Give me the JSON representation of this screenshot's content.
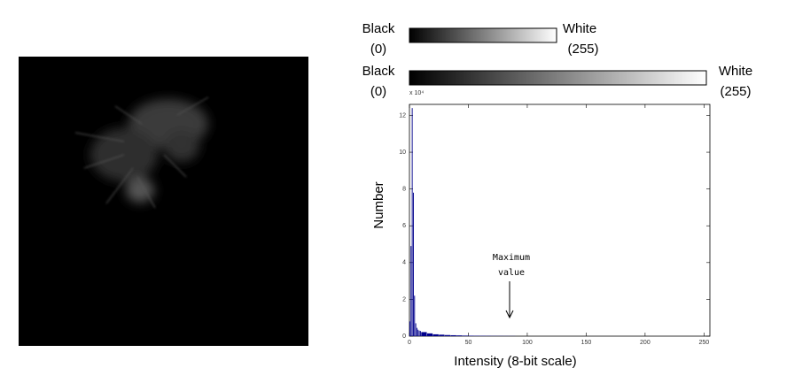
{
  "chart_data": {
    "type": "histogram",
    "xlabel": "Intensity (8-bit scale)",
    "ylabel": "Number",
    "y_multiplier": "x 10⁴",
    "bins": [
      0,
      1,
      2,
      3,
      4,
      5,
      6,
      7,
      8,
      9,
      10,
      15,
      20,
      25,
      30,
      35,
      40,
      45,
      50,
      55,
      60,
      65,
      70,
      75,
      80,
      85,
      90
    ],
    "values": [
      0.8,
      4.9,
      12.4,
      7.8,
      2.2,
      0.7,
      0.45,
      0.35,
      0.3,
      0.28,
      0.22,
      0.15,
      0.1,
      0.08,
      0.06,
      0.05,
      0.04,
      0.03,
      0.025,
      0.02,
      0.018,
      0.015,
      0.012,
      0.01,
      0.008,
      0.006
    ],
    "color": "#00008b",
    "xlim": [
      0,
      255
    ],
    "ylim": [
      0,
      12.6
    ],
    "xticks": [
      0,
      50,
      100,
      150,
      200,
      250
    ],
    "yticks": [
      0,
      2,
      4,
      6,
      8,
      10,
      12
    ],
    "annotation": {
      "lines": [
        "Maximum",
        "value"
      ],
      "x": 85
    },
    "scale_bars": [
      {
        "left": [
          "Black",
          "(0)"
        ],
        "right": [
          "White",
          "(255)"
        ]
      },
      {
        "left": [
          "Black",
          "(0)"
        ],
        "right": [
          "White",
          "(255)"
        ]
      }
    ]
  }
}
